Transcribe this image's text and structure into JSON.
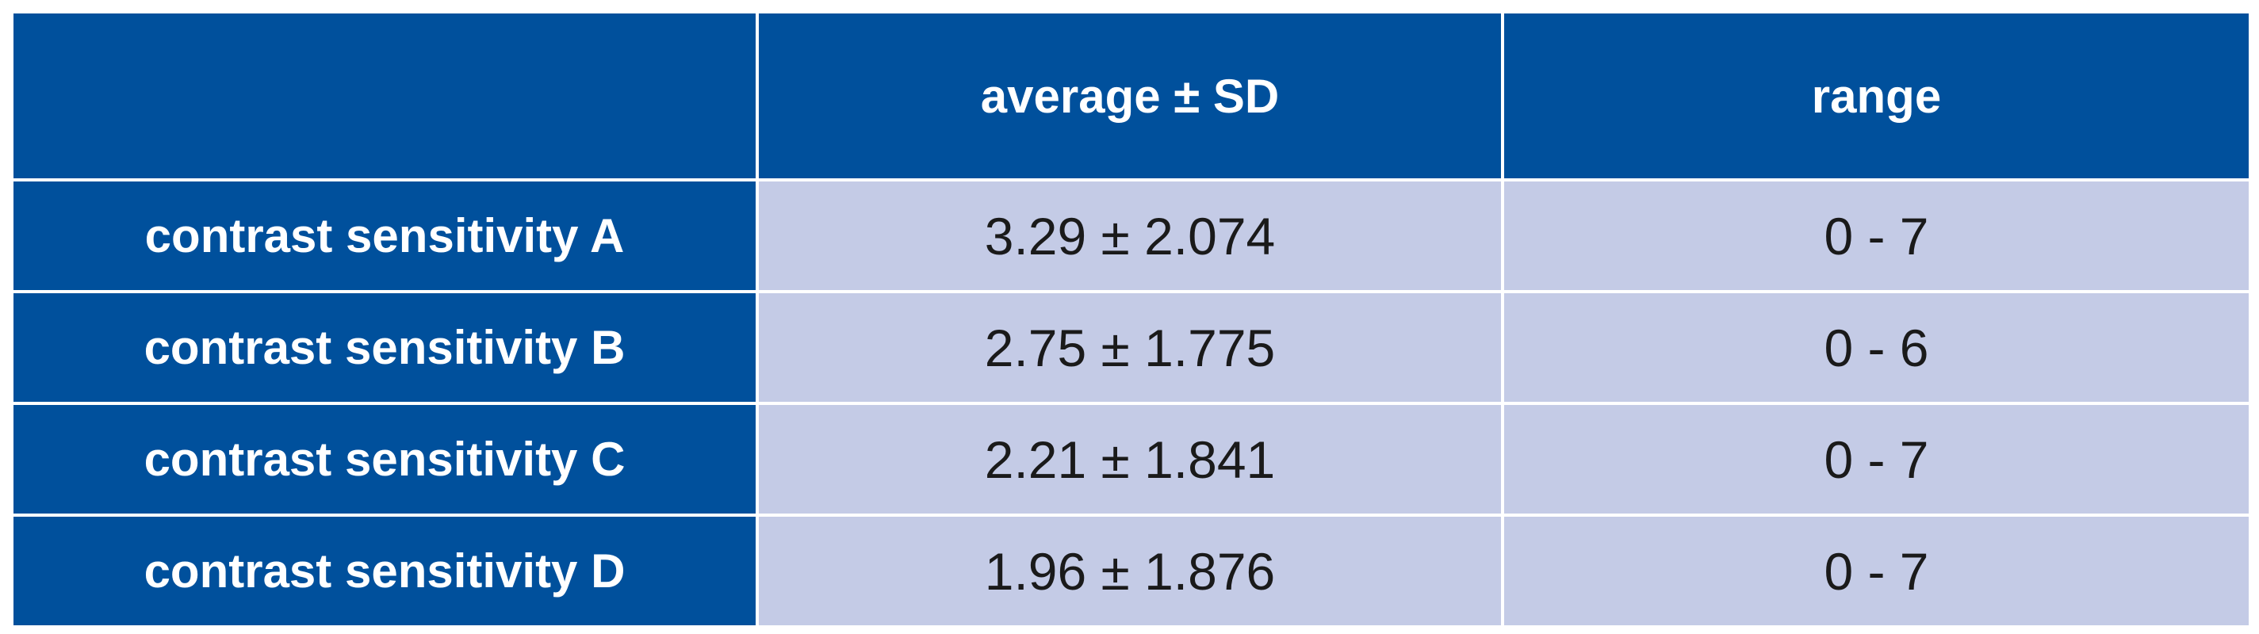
{
  "table": {
    "headers": [
      "",
      "average ± SD",
      "range"
    ],
    "rows": [
      {
        "label": "contrast sensitivity A",
        "average_sd": "3.29 ± 2.074",
        "range": "0 - 7"
      },
      {
        "label": "contrast sensitivity B",
        "average_sd": "2.75 ± 1.775",
        "range": "0 - 6"
      },
      {
        "label": "contrast sensitivity C",
        "average_sd": "2.21 ± 1.841",
        "range": "0 - 7"
      },
      {
        "label": "contrast sensitivity D",
        "average_sd": "1.96 ± 1.876",
        "range": "0 - 7"
      }
    ]
  },
  "colors": {
    "header_bg": "#00509c",
    "cell_bg": "#c4cbe6",
    "header_text": "#ffffff",
    "cell_text": "#1a1a1a"
  }
}
